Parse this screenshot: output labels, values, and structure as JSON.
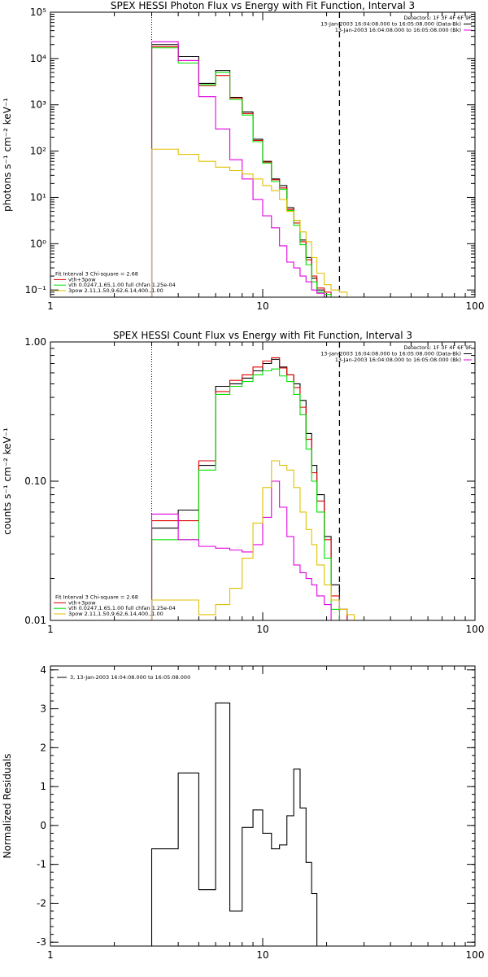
{
  "chart_data": [
    {
      "type": "line",
      "title": "SPEX HESSI Photon Flux vs Energy with Fit Function, Interval 3",
      "xlabel": "",
      "ylabel": "photons s⁻¹ cm⁻² keV⁻¹",
      "xscale": "log",
      "yscale": "log",
      "xlim": [
        1,
        100
      ],
      "ylim": [
        0.07,
        100000
      ],
      "x_ticks": [
        "1",
        "10",
        "100"
      ],
      "y_ticks": [
        "10⁻¹",
        "10⁰",
        "10¹",
        "10²",
        "10³",
        "10⁴",
        "10⁵"
      ],
      "y_tick_values": [
        0.1,
        1,
        10,
        100,
        1000,
        10000,
        100000
      ],
      "vlines": [
        {
          "x": 3,
          "style": "dotted"
        },
        {
          "x": 23,
          "style": "dashed"
        }
      ],
      "bin_edges": [
        3,
        4,
        5,
        6,
        7,
        8,
        9,
        10,
        11,
        12,
        13,
        14,
        15,
        16,
        17,
        18,
        19.5,
        21,
        23,
        25,
        27
      ],
      "series": [
        {
          "color": "#000000",
          "values": [
            20000,
            11000,
            2900,
            5500,
            1450,
            700,
            180,
            60,
            25,
            18,
            6,
            3.2,
            1.2,
            0.5,
            0.18,
            0.1,
            null,
            null,
            null,
            null
          ]
        },
        {
          "color": "#e00000",
          "values": [
            18000,
            9000,
            2600,
            4300,
            1400,
            650,
            170,
            58,
            24,
            16,
            5.5,
            2.8,
            1.1,
            0.45,
            0.2,
            0.11,
            0.09,
            null,
            null,
            null
          ]
        },
        {
          "color": "#00e000",
          "values": [
            17000,
            8000,
            2700,
            5000,
            1300,
            600,
            160,
            55,
            22,
            15,
            5.2,
            2.5,
            0.95,
            0.35,
            0.15,
            0.09,
            0.08,
            null,
            null,
            null
          ]
        },
        {
          "color": "#e000e0",
          "values": [
            23000,
            9000,
            1500,
            300,
            65,
            25,
            9,
            4,
            2.2,
            0.9,
            0.4,
            0.3,
            0.2,
            0.15,
            0.1,
            0.085,
            null,
            null,
            null,
            null
          ]
        },
        {
          "color": "#e0c000",
          "values": [
            110,
            85,
            60,
            45,
            38,
            32,
            25,
            18,
            14,
            9,
            5,
            3.2,
            1.8,
            1.1,
            0.5,
            0.23,
            0.13,
            0.1,
            0.09,
            null
          ]
        }
      ],
      "legend_top": {
        "placement": "top-right",
        "lines": [
          {
            "text": "Detectors: 1F 3F 4F 6F 9F",
            "color": null
          },
          {
            "text": "13-Jan-2003 16:04:08.000 to 16:05:08.000 (Data-Bk)",
            "color": "#000000"
          },
          {
            "text": "13-Jan-2003 16:04:08.000 to 16:05:08.000 (Bk)",
            "color": "#e000e0"
          }
        ]
      },
      "legend_bottom": {
        "placement": "bottom-left",
        "lines": [
          {
            "text": "Fit Interval 3   Chi-square = 2.68",
            "color": null
          },
          {
            "text": "vth+3pow",
            "color": "#e00000"
          },
          {
            "text": "vth 0.0247,1.65,1.00  full chfan 1.25e-04",
            "color": "#00e000"
          },
          {
            "text": "3pow 2.11,1.50,9.62,6.14,400.,1.00",
            "color": "#e0c000"
          }
        ]
      }
    },
    {
      "type": "line",
      "title": "SPEX HESSI Count Flux vs Energy with Fit Function, Interval 3",
      "xlabel": "",
      "ylabel": "counts s⁻¹ cm⁻² keV⁻¹",
      "xscale": "log",
      "yscale": "log",
      "xlim": [
        1,
        100
      ],
      "ylim": [
        0.01,
        1.0
      ],
      "x_ticks": [
        "1",
        "10",
        "100"
      ],
      "y_ticks": [
        "0.01",
        "0.10",
        "1.00"
      ],
      "y_tick_values": [
        0.01,
        0.1,
        1.0
      ],
      "vlines": [
        {
          "x": 3,
          "style": "dotted"
        },
        {
          "x": 23,
          "style": "dashed"
        }
      ],
      "bin_edges": [
        3,
        4,
        5,
        6,
        7,
        8,
        9,
        10,
        11,
        12,
        13,
        14,
        15,
        16,
        17,
        18,
        19.5,
        21,
        23,
        25,
        27
      ],
      "series": [
        {
          "color": "#000000",
          "values": [
            0.046,
            0.062,
            0.13,
            0.48,
            0.5,
            0.55,
            0.62,
            0.7,
            0.75,
            0.66,
            0.58,
            0.5,
            0.38,
            0.22,
            0.13,
            0.08,
            0.04,
            0.018,
            0.012,
            null
          ]
        },
        {
          "color": "#e00000",
          "values": [
            0.052,
            0.052,
            0.14,
            0.44,
            0.53,
            0.58,
            0.66,
            0.73,
            0.77,
            0.65,
            0.58,
            0.47,
            0.34,
            0.2,
            0.115,
            0.072,
            0.038,
            0.015,
            0.012,
            null
          ]
        },
        {
          "color": "#00e000",
          "values": [
            0.038,
            0.038,
            0.12,
            0.42,
            0.48,
            0.52,
            0.58,
            0.62,
            0.64,
            0.57,
            0.52,
            0.42,
            0.3,
            0.17,
            0.1,
            0.06,
            0.028,
            0.012,
            0.01,
            null
          ]
        },
        {
          "color": "#e000e0",
          "values": [
            0.058,
            0.038,
            0.034,
            0.033,
            0.032,
            0.031,
            0.035,
            0.055,
            0.1,
            0.065,
            0.04,
            0.025,
            0.022,
            0.02,
            0.018,
            0.015,
            0.013,
            null,
            null,
            null
          ]
        },
        {
          "color": "#e0c000",
          "values": [
            0.014,
            0.014,
            0.011,
            0.013,
            0.017,
            0.028,
            0.05,
            0.09,
            0.14,
            0.13,
            0.12,
            0.09,
            0.06,
            0.045,
            0.035,
            0.025,
            0.018,
            0.014,
            0.012,
            0.011
          ]
        }
      ],
      "legend_top": {
        "placement": "top-right",
        "lines": [
          {
            "text": "Detectors: 1F 3F 4F 6F 9F",
            "color": null
          },
          {
            "text": "13-Jan-2003 16:04:08.000 to 16:05:08.000 (Data-Bk)",
            "color": "#000000"
          },
          {
            "text": "13-Jan-2003 16:04:08.000 to 16:05:08.000 (Bk)",
            "color": "#e000e0"
          }
        ]
      },
      "legend_bottom": {
        "placement": "bottom-left",
        "lines": [
          {
            "text": "Fit Interval 3   Chi-square = 2.68",
            "color": null
          },
          {
            "text": "vth+3pow",
            "color": "#e00000"
          },
          {
            "text": "vth 0.0247,1.65,1.00  full chfan 1.25e-04",
            "color": "#00e000"
          },
          {
            "text": "3pow 2.11,1.50,9.62,6.14,400.,1.00",
            "color": "#e0c000"
          }
        ]
      }
    },
    {
      "type": "line",
      "title": "",
      "xlabel": "",
      "ylabel": "Normalized Residuals",
      "xscale": "log",
      "yscale": "linear",
      "xlim": [
        1,
        100
      ],
      "ylim": [
        -3.1,
        4.1
      ],
      "x_ticks": [
        "1",
        "10",
        "100"
      ],
      "y_ticks": [
        "-3",
        "-2",
        "-1",
        "0",
        "1",
        "2",
        "3",
        "4"
      ],
      "y_tick_values": [
        -3,
        -2,
        -1,
        0,
        1,
        2,
        3,
        4
      ],
      "y_baseline": -3.1,
      "vlines": [],
      "bin_edges": [
        3,
        4,
        5,
        6,
        7,
        8,
        9,
        10,
        11,
        12,
        13,
        14,
        15,
        16,
        17,
        18,
        19.5,
        21,
        23
      ],
      "series": [
        {
          "color": "#000000",
          "values": [
            -0.6,
            1.35,
            -1.65,
            3.15,
            -2.2,
            -0.05,
            0.4,
            -0.2,
            -0.6,
            -0.5,
            0.25,
            1.45,
            0.45,
            -0.95,
            -1.75,
            null,
            null,
            null
          ]
        }
      ],
      "legend_top": {
        "placement": "top-left",
        "lines": [
          {
            "text": "3, 13-Jan-2003 16:04:08.000 to 16:05:08.000",
            "color": "#000000"
          }
        ]
      },
      "legend_bottom": null
    }
  ]
}
